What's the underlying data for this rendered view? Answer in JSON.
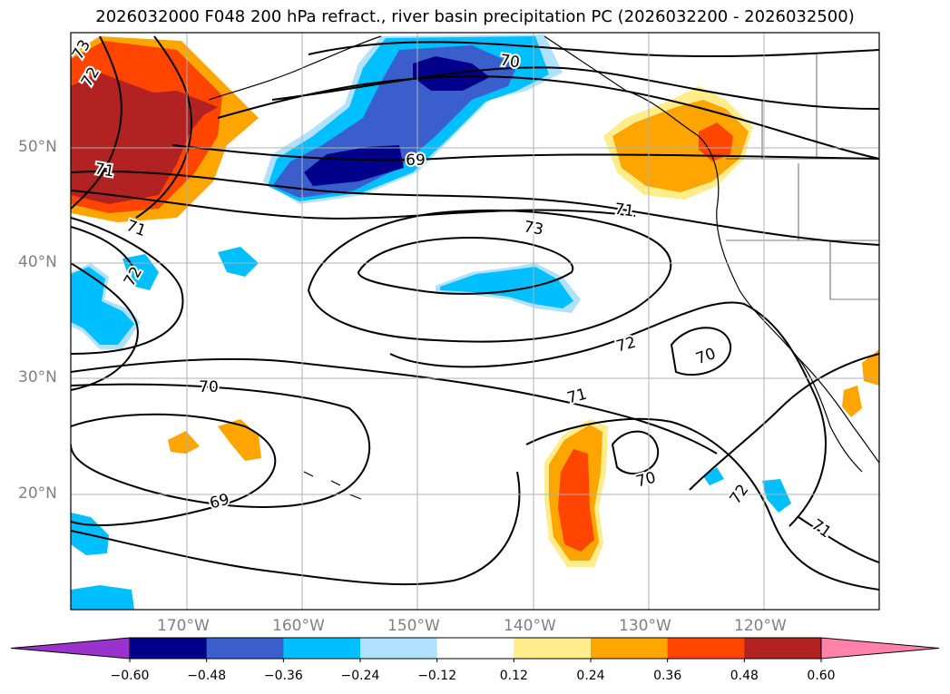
{
  "figure": {
    "title": "2026032000 F048 200 hPa refract., river basin precipitation PC (2026032200 - 2026032500)"
  },
  "axes": {
    "lat_labels": [
      "50°N",
      "40°N",
      "30°N",
      "20°N"
    ],
    "lon_labels": [
      "170°W",
      "160°W",
      "150°W",
      "140°W",
      "130°W",
      "120°W"
    ]
  },
  "contours": {
    "labels": [
      "73",
      "72",
      "71",
      "71",
      "70",
      "69",
      "71",
      "73",
      "72",
      "72",
      "71",
      "70",
      "70",
      "69",
      "70",
      "72",
      "71"
    ]
  },
  "colorbar": {
    "tick_labels": [
      "−0.60",
      "−0.48",
      "−0.36",
      "−0.24",
      "−0.12",
      "0.12",
      "0.24",
      "0.36",
      "0.48",
      "0.60"
    ],
    "colors": [
      "#9a32cd",
      "#00008b",
      "#3a5fcd",
      "#00bfff",
      "#b0e2ff",
      "#ffffff",
      "#ffec8b",
      "#ffa500",
      "#ff4500",
      "#b22222",
      "#ff82ab"
    ]
  }
}
